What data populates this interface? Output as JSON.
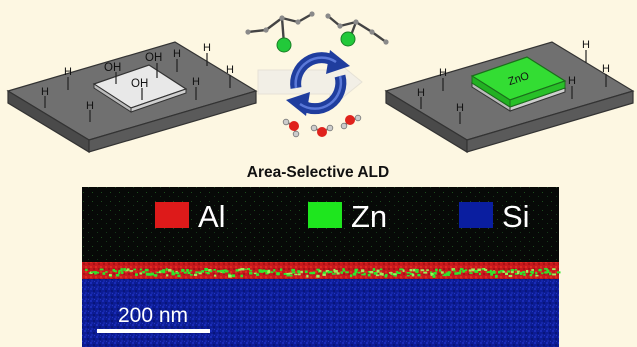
{
  "figure": {
    "left_panel": {
      "surface_labels": [
        "H",
        "H",
        "H",
        "H",
        "H",
        "H",
        "H"
      ],
      "pad_labels": [
        "OH",
        "OH",
        "OH"
      ]
    },
    "right_panel": {
      "surface_labels": [
        "H",
        "H",
        "H",
        "H",
        "H",
        "H"
      ],
      "pad_label": "ZnO"
    },
    "title": "Area-Selective ALD",
    "colors": {
      "background": "#fdf7e2",
      "substrate_top": "#6e6e6e",
      "pad_white": "#e6e6e6",
      "zno_green": "#33dd33",
      "cycle_arrow": "#1f3d9e",
      "micrograph_bg": "#080a08"
    }
  },
  "micrograph": {
    "legend": [
      {
        "label": "Al",
        "color": "#dd1a1a"
      },
      {
        "label": "Zn",
        "color": "#1ee61e"
      },
      {
        "label": "Si",
        "color": "#0a1ea0"
      }
    ],
    "scale_bar": "200 nm"
  }
}
